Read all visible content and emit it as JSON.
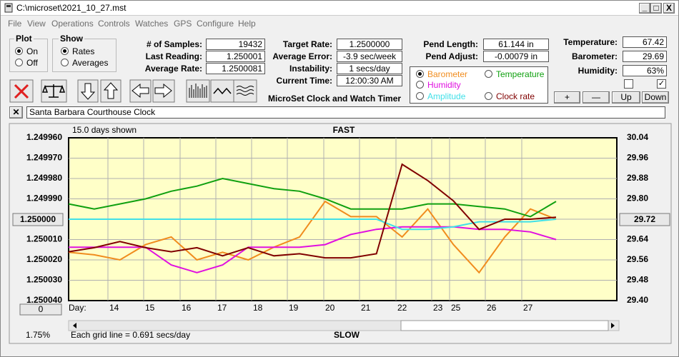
{
  "window": {
    "title": "C:\\microset\\2021_10_27.mst"
  },
  "menu": [
    "File",
    "View",
    "Operations",
    "Controls",
    "Watches",
    "GPS",
    "Configure",
    "Help"
  ],
  "plot_group": {
    "label": "Plot",
    "options": [
      "On",
      "Off"
    ]
  },
  "show_group": {
    "label": "Show",
    "options": [
      "Rates",
      "Averages"
    ]
  },
  "fields": [
    {
      "label": "# of Samples:",
      "value": "19432"
    },
    {
      "label": "Last Reading:",
      "value": "1.250001"
    },
    {
      "label": "Average Rate:",
      "value": "1.2500081"
    },
    {
      "label": "Target Rate:",
      "value": "1.2500000"
    },
    {
      "label": "Average Error:",
      "value": "-3.9 sec/week"
    },
    {
      "label": "Instability:",
      "value": "1 secs/day"
    },
    {
      "label": "Current Time:",
      "value": "12:00:30 AM"
    },
    {
      "label": "Pend Length:",
      "value": "61.144 in"
    },
    {
      "label": "Pend Adjust:",
      "value": "-0.00079 in"
    },
    {
      "label": "Temperature:",
      "value": "67.42"
    },
    {
      "label": "Barometer:",
      "value": "29.69"
    },
    {
      "label": "Humidity:",
      "value": "63%"
    }
  ],
  "app_title": "MicroSet Clock and Watch Timer",
  "buttons": [
    "+",
    "—",
    "Up",
    "Down"
  ],
  "clock_name": "Santa Barbara Courthouse Clock",
  "chart_data": {
    "type": "line",
    "subtitle": "15.0 days shown",
    "top_label": "FAST",
    "bottom_label": "SLOW",
    "x_label": "Day:",
    "footnote": "Each grid line = 0.691 secs/day",
    "percent_label": "1.75%",
    "offset_button": "0",
    "xticks": [
      14,
      15,
      16,
      17,
      18,
      19,
      20,
      21,
      22,
      23,
      25,
      26,
      27
    ],
    "ylim": [
      1.25004,
      1.24996
    ],
    "yticks": [
      {
        "value": 1.24996,
        "label": "1.249960"
      },
      {
        "value": 1.24997,
        "label": "1.249970"
      },
      {
        "value": 1.24998,
        "label": "1.249980"
      },
      {
        "value": 1.24999,
        "label": "1.249990"
      },
      {
        "value": 1.25,
        "label": "1.250000"
      },
      {
        "value": 1.25001,
        "label": "1.250010"
      },
      {
        "value": 1.25002,
        "label": "1.250020"
      },
      {
        "value": 1.25003,
        "label": "1.250030"
      },
      {
        "value": 1.25004,
        "label": "1.250040"
      }
    ],
    "y2lim": [
      29.4,
      30.04
    ],
    "y2ticks": [
      30.04,
      29.96,
      29.88,
      {
        "value": 29.8,
        "label": "29.80"
      },
      29.72,
      29.64,
      29.56,
      29.48,
      {
        "value": 29.4,
        "label": "29.40"
      }
    ],
    "grid": true,
    "background": "#ffffc8",
    "series": [
      {
        "name": "Barometer",
        "color": "#f08c1e",
        "axis": "y2",
        "values": [
          29.59,
          29.58,
          29.56,
          29.62,
          29.65,
          29.56,
          29.59,
          29.56,
          29.61,
          29.65,
          29.79,
          29.73,
          29.73,
          29.65,
          29.76,
          29.62,
          29.51,
          29.65,
          29.76,
          29.72
        ]
      },
      {
        "name": "Temperature",
        "color": "#10a010",
        "axis": "y2",
        "values": [
          29.78,
          29.76,
          29.78,
          29.8,
          29.83,
          29.85,
          29.88,
          29.86,
          29.84,
          29.83,
          29.8,
          29.76,
          29.76,
          29.76,
          29.78,
          29.78,
          29.77,
          29.76,
          29.73,
          29.79
        ]
      },
      {
        "name": "Humidity",
        "color": "#e010e0",
        "axis": "y2",
        "values": [
          29.61,
          29.61,
          29.61,
          29.61,
          29.54,
          29.51,
          29.54,
          29.61,
          29.61,
          29.61,
          29.62,
          29.66,
          29.68,
          29.69,
          29.69,
          29.69,
          29.68,
          29.68,
          29.67,
          29.64
        ]
      },
      {
        "name": "Amplitude",
        "color": "#40e0e8",
        "axis": "y2",
        "values": [
          29.72,
          29.72,
          29.72,
          29.72,
          29.72,
          29.72,
          29.72,
          29.72,
          29.72,
          29.72,
          29.72,
          29.72,
          29.72,
          29.68,
          29.68,
          29.69,
          29.71,
          29.71,
          29.71,
          29.72
        ]
      },
      {
        "name": "Clock rate",
        "color": "#800000",
        "values": [
          1.250016,
          1.250014,
          1.250011,
          1.250014,
          1.250016,
          1.250014,
          1.250018,
          1.250014,
          1.250018,
          1.250017,
          1.250019,
          1.250019,
          1.250017,
          1.249973,
          1.249981,
          1.249991,
          1.250005,
          1.25,
          1.25,
          1.249999
        ]
      }
    ]
  }
}
